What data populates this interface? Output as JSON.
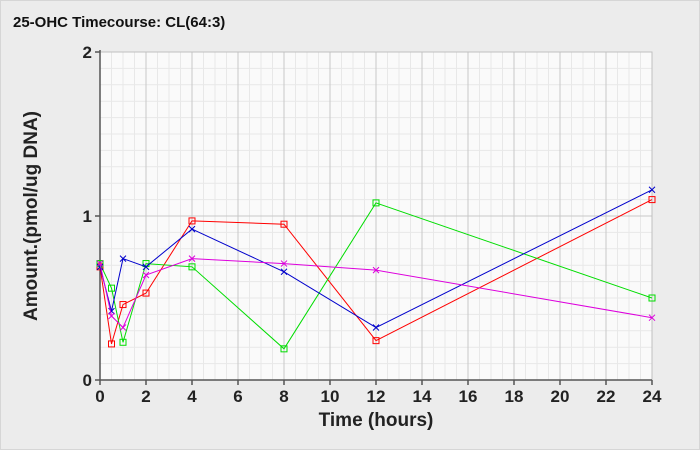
{
  "chart_data": {
    "type": "line",
    "title": "25-OHC Timecourse: CL(64:3)",
    "xlabel": "Time (hours)",
    "ylabel": "Amount.(pmol/ug DNA)",
    "xlim": [
      0,
      24
    ],
    "ylim": [
      0,
      2
    ],
    "x_ticks": [
      0,
      2,
      4,
      6,
      8,
      10,
      12,
      14,
      16,
      18,
      20,
      22,
      24
    ],
    "y_ticks": [
      0,
      1,
      2
    ],
    "grid": true,
    "legend": "none",
    "series": [
      {
        "color": "#ff0000",
        "marker": "square",
        "x": [
          0,
          0.5,
          1,
          2,
          4,
          8,
          12,
          24
        ],
        "y": [
          0.69,
          0.22,
          0.46,
          0.53,
          0.97,
          0.95,
          0.24,
          1.1
        ]
      },
      {
        "color": "#00dd00",
        "marker": "square",
        "x": [
          0,
          0.5,
          1,
          2,
          4,
          8,
          12,
          24
        ],
        "y": [
          0.71,
          0.56,
          0.23,
          0.71,
          0.69,
          0.19,
          1.08,
          0.5
        ]
      },
      {
        "color": "#0000cc",
        "marker": "x",
        "x": [
          0,
          0.5,
          1,
          2,
          4,
          8,
          12,
          24
        ],
        "y": [
          0.69,
          0.42,
          0.74,
          0.69,
          0.92,
          0.66,
          0.32,
          1.16
        ]
      },
      {
        "color": "#dd00dd",
        "marker": "x",
        "x": [
          0,
          0.5,
          1,
          2,
          4,
          8,
          12,
          24
        ],
        "y": [
          0.71,
          0.39,
          0.32,
          0.64,
          0.74,
          0.71,
          0.67,
          0.38
        ]
      }
    ]
  }
}
